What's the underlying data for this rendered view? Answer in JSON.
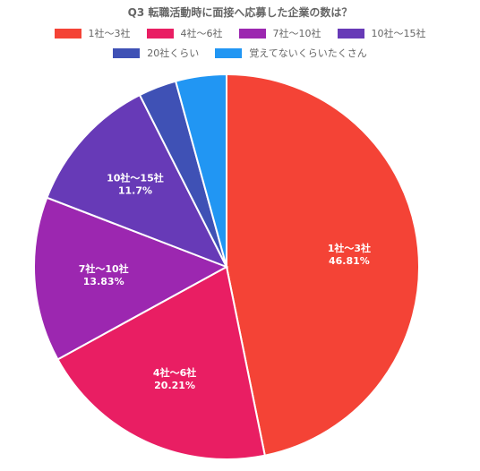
{
  "chart_data": {
    "type": "pie",
    "title": "Q3 転職活動時に面接へ応募した企業の数は？",
    "legend_position": "top",
    "categories": [
      "1社〜3社",
      "4社〜6社",
      "7社〜10社",
      "10社〜15社",
      "20社くらい",
      "覚えてないくらいたくさん"
    ],
    "values": [
      46.81,
      20.21,
      13.83,
      11.7,
      3.19,
      4.26
    ],
    "value_labels": [
      "46.81%",
      "20.21%",
      "13.83%",
      "11.7%",
      "",
      ""
    ],
    "colors": [
      "#f44336",
      "#e91e63",
      "#9c27b0",
      "#673ab7",
      "#3f51b5",
      "#2196f3"
    ]
  }
}
